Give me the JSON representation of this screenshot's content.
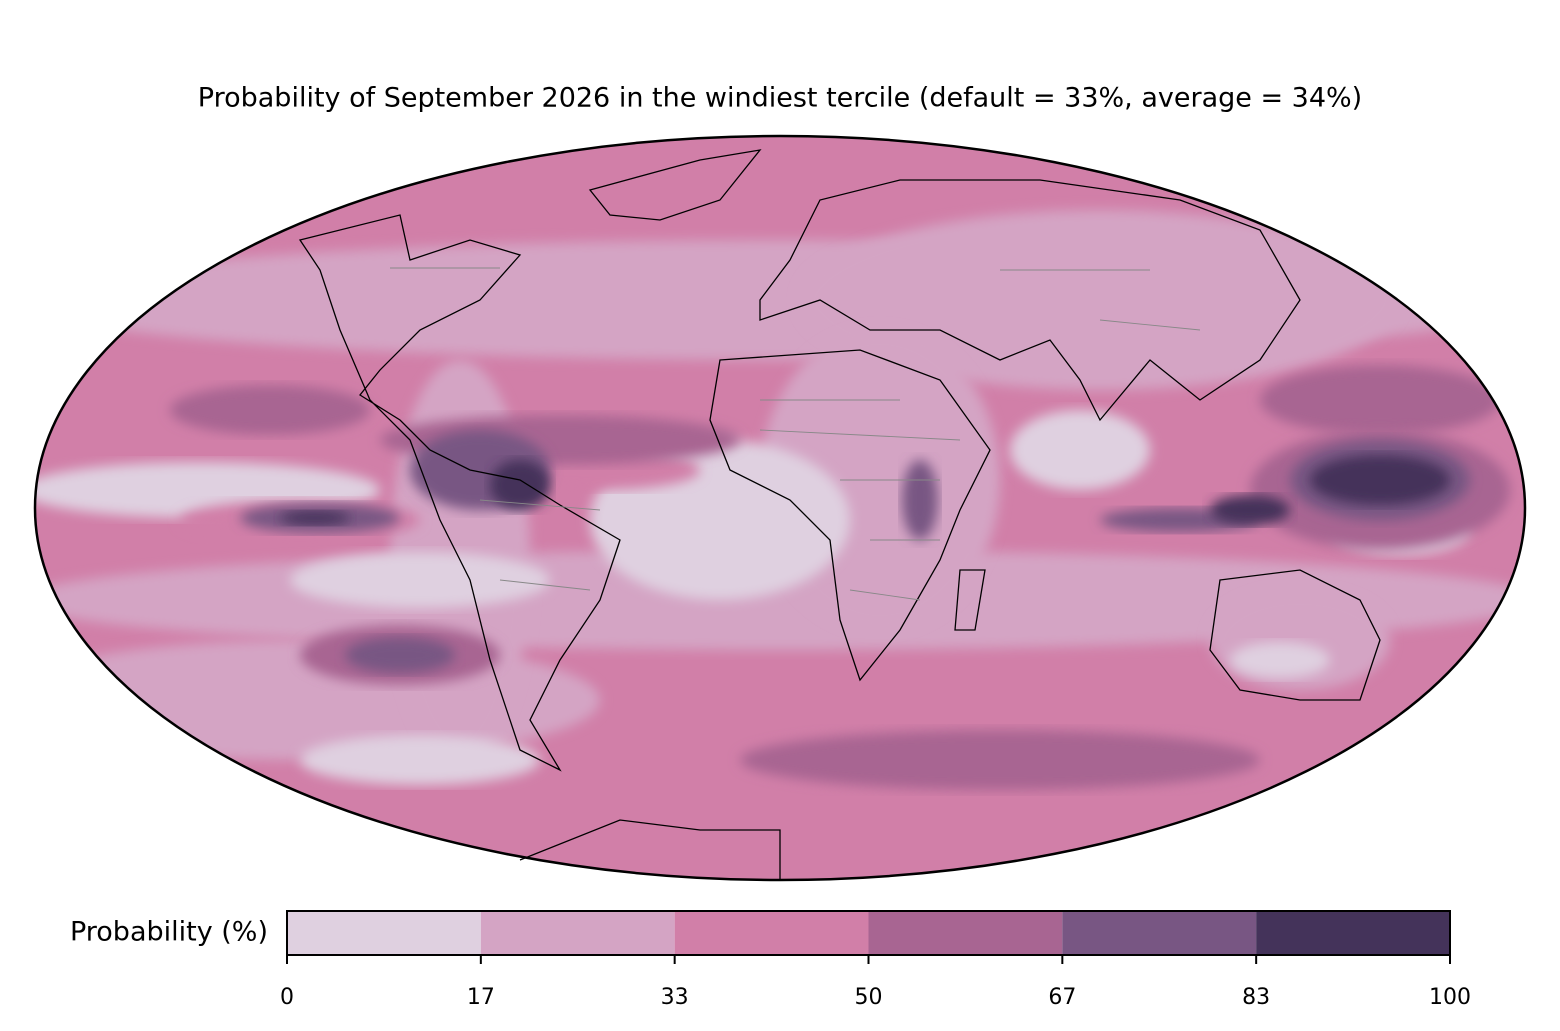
{
  "title": "Probability of September 2026 in the windiest tercile (default = 33%, average = 34%)",
  "map": {
    "projection": "mollweide"
  },
  "colorbar": {
    "label": "Probability (%)",
    "xlim": [
      0,
      100
    ],
    "ticks": [
      0,
      {
        "value": 16.667,
        "label": "17"
      },
      {
        "value": 33.333,
        "label": "33"
      },
      50,
      {
        "value": 66.667,
        "label": "67"
      },
      {
        "value": 83.333,
        "label": "83"
      },
      100
    ],
    "colors": [
      "#dfd0e0",
      "#d4a4c4",
      "#d17fa8",
      "#a86592",
      "#785683",
      "#44335a"
    ]
  }
}
